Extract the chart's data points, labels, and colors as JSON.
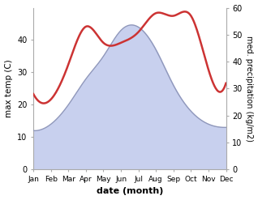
{
  "months": [
    "Jan",
    "Feb",
    "Mar",
    "Apr",
    "May",
    "Jun",
    "Jul",
    "Aug",
    "Sep",
    "Oct",
    "Nov",
    "Dec"
  ],
  "temperature": [
    12,
    14,
    20,
    28,
    35,
    43,
    44,
    37,
    26,
    18,
    14,
    13
  ],
  "precipitation": [
    28,
    26,
    39,
    53,
    47,
    47,
    51,
    58,
    57,
    57,
    37,
    32
  ],
  "temp_fill_color": "#c8d0ee",
  "temp_line_color": "#9098bb",
  "precip_color": "#cc3333",
  "xlabel": "date (month)",
  "ylabel_left": "max temp (C)",
  "ylabel_right": "med. precipitation (kg/m2)",
  "ylim_left": [
    0,
    50
  ],
  "ylim_right": [
    0,
    60
  ],
  "yticks_left": [
    0,
    10,
    20,
    30,
    40
  ],
  "yticks_right": [
    0,
    10,
    20,
    30,
    40,
    50,
    60
  ],
  "background_color": "#ffffff",
  "spine_color": "#aaaaaa"
}
